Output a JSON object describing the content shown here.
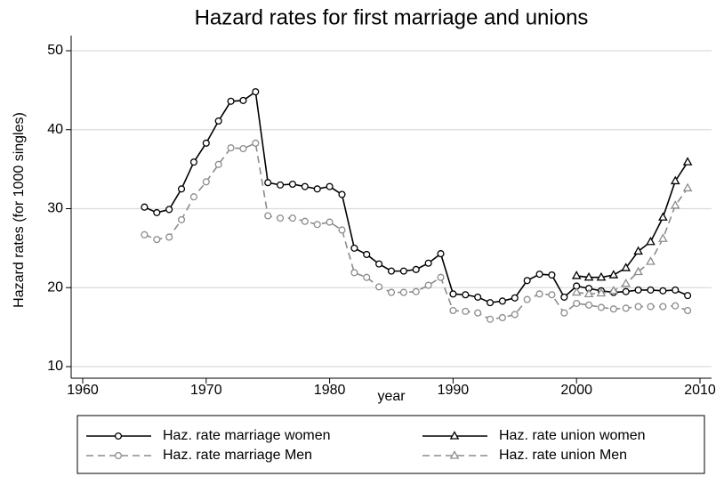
{
  "chart_data": {
    "type": "line",
    "title": "Hazard rates for first marriage and unions",
    "xlabel": "year",
    "ylabel": "Hazard rates (for 1000 singles)",
    "x": [
      1965,
      1966,
      1967,
      1968,
      1969,
      1970,
      1971,
      1972,
      1973,
      1974,
      1975,
      1976,
      1977,
      1978,
      1979,
      1980,
      1981,
      1982,
      1983,
      1984,
      1985,
      1986,
      1987,
      1988,
      1989,
      1990,
      1991,
      1992,
      1993,
      1994,
      1995,
      1996,
      1997,
      1998,
      1999,
      2000,
      2001,
      2002,
      2003,
      2004,
      2005,
      2006,
      2007,
      2008,
      2009
    ],
    "series": [
      {
        "name": "Haz. rate marriage women",
        "color": "#000000",
        "dash": false,
        "marker": "circle",
        "values": [
          30.2,
          29.5,
          29.9,
          32.5,
          35.9,
          38.3,
          41.1,
          43.6,
          43.7,
          44.8,
          33.3,
          33.0,
          33.1,
          32.8,
          32.5,
          32.8,
          31.8,
          25.0,
          24.2,
          23.0,
          22.1,
          22.1,
          22.3,
          23.1,
          24.3,
          19.2,
          19.1,
          18.8,
          18.1,
          18.3,
          18.7,
          20.9,
          21.7,
          21.6,
          18.8,
          20.2,
          19.9,
          19.6,
          19.4,
          19.5,
          19.7,
          19.7,
          19.6,
          19.7,
          19.0
        ]
      },
      {
        "name": "Haz. rate union women",
        "color": "#000000",
        "dash": false,
        "marker": "triangle",
        "values": [
          null,
          null,
          null,
          null,
          null,
          null,
          null,
          null,
          null,
          null,
          null,
          null,
          null,
          null,
          null,
          null,
          null,
          null,
          null,
          null,
          null,
          null,
          null,
          null,
          null,
          null,
          null,
          null,
          null,
          null,
          null,
          null,
          null,
          null,
          null,
          21.5,
          21.3,
          21.3,
          21.6,
          22.5,
          24.6,
          25.8,
          28.9,
          33.5,
          35.9
        ]
      },
      {
        "name": "Haz. rate marriage Men",
        "color": "#8c8c8c",
        "dash": true,
        "marker": "circle",
        "values": [
          26.7,
          26.1,
          26.4,
          28.6,
          31.5,
          33.4,
          35.6,
          37.7,
          37.6,
          38.3,
          29.1,
          28.8,
          28.8,
          28.4,
          28.0,
          28.3,
          27.3,
          21.9,
          21.3,
          20.1,
          19.4,
          19.4,
          19.5,
          20.3,
          21.3,
          17.1,
          17.0,
          16.8,
          16.0,
          16.2,
          16.6,
          18.5,
          19.2,
          19.1,
          16.8,
          18.0,
          17.8,
          17.5,
          17.3,
          17.4,
          17.6,
          17.6,
          17.6,
          17.7,
          17.1
        ]
      },
      {
        "name": "Haz. rate union Men",
        "color": "#8c8c8c",
        "dash": true,
        "marker": "triangle",
        "values": [
          null,
          null,
          null,
          null,
          null,
          null,
          null,
          null,
          null,
          null,
          null,
          null,
          null,
          null,
          null,
          null,
          null,
          null,
          null,
          null,
          null,
          null,
          null,
          null,
          null,
          null,
          null,
          null,
          null,
          null,
          null,
          null,
          null,
          null,
          null,
          19.4,
          19.2,
          19.3,
          19.6,
          20.5,
          22.0,
          23.3,
          26.2,
          30.4,
          32.6
        ]
      }
    ],
    "xlim": [
      1960,
      2010
    ],
    "xticks": [
      1960,
      1970,
      1980,
      1990,
      2000,
      2010
    ],
    "ylim": [
      10,
      50
    ],
    "yticks": [
      10,
      20,
      30,
      40,
      50
    ],
    "grid": true,
    "legend": "bottom"
  }
}
